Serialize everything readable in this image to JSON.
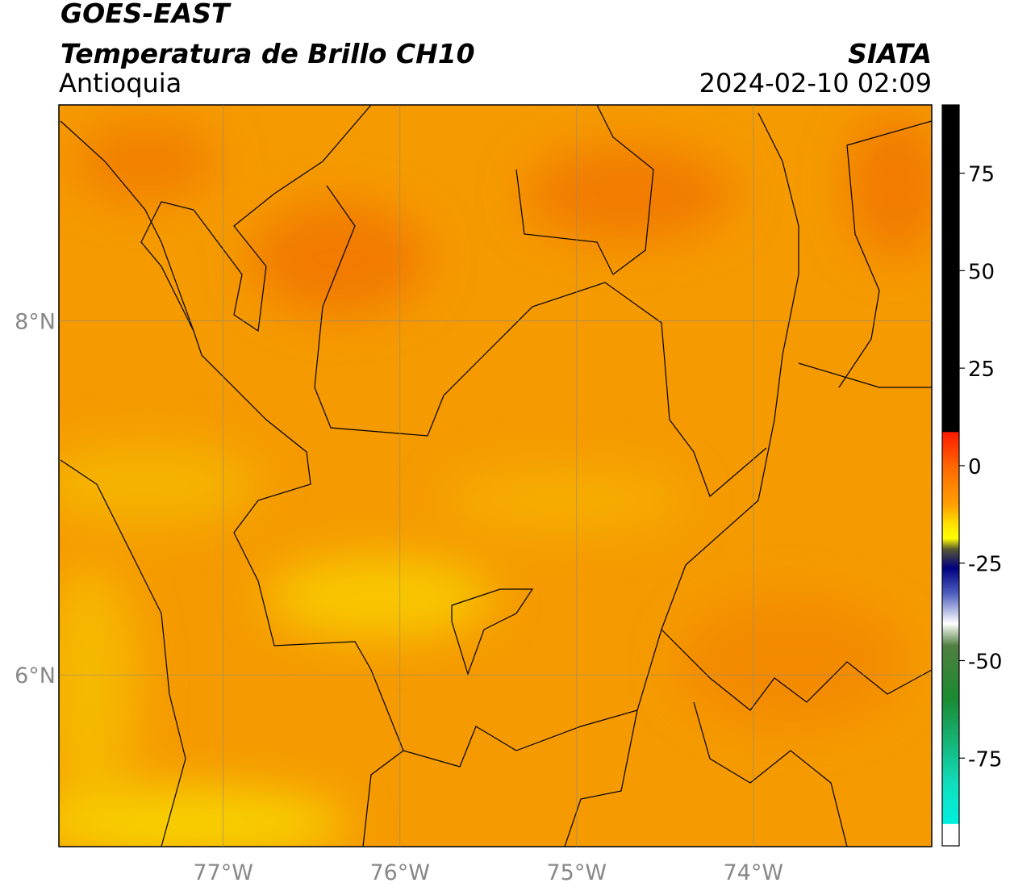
{
  "header": {
    "title": "GOES-EAST",
    "subtitle": "Temperatura de Brillo CH10",
    "region": "Antioquia",
    "source": "SIATA",
    "datetime": "2024-02-10 02:09"
  },
  "map": {
    "xlim": [
      -77.93,
      -72.99
    ],
    "ylim": [
      5.03,
      9.22
    ],
    "xticks": [
      {
        "value": -77,
        "label": "77°W"
      },
      {
        "value": -76,
        "label": "76°W"
      },
      {
        "value": -75,
        "label": "75°W"
      },
      {
        "value": -74,
        "label": "74°W"
      }
    ],
    "yticks": [
      {
        "value": 8,
        "label": "8°N"
      },
      {
        "value": 6,
        "label": "6°N"
      }
    ],
    "grid": true
  },
  "colorbar": {
    "lim": [
      -97.5,
      92.5
    ],
    "ticks": [
      75,
      50,
      25,
      0,
      -25,
      -50,
      -75
    ]
  }
}
